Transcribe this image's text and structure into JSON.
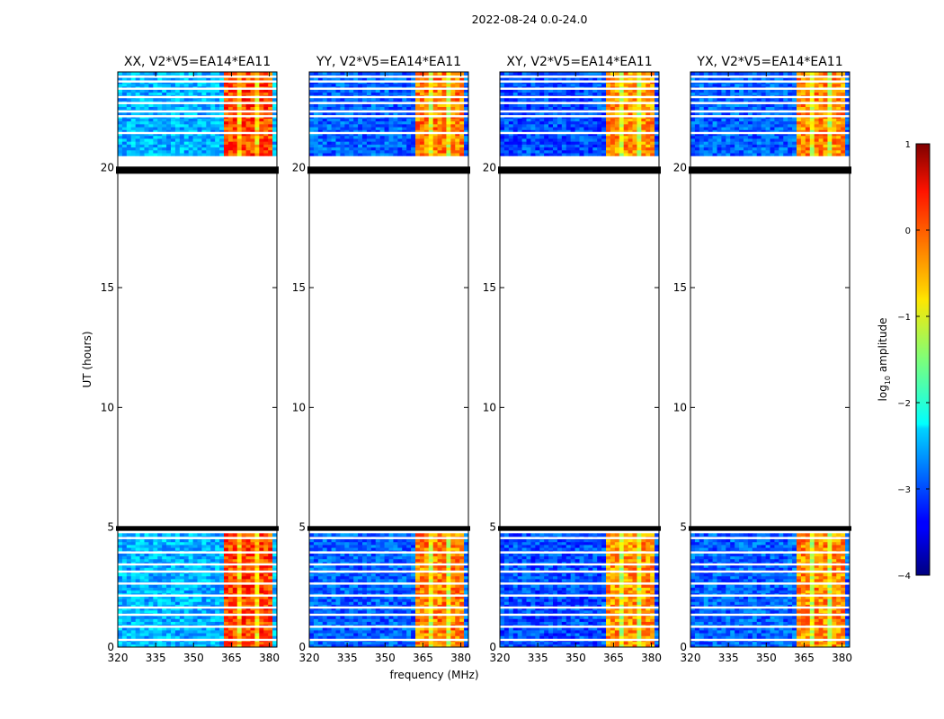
{
  "figure": {
    "suptitle": "2022-08-24 0.0-24.0",
    "ylabel": "UT (hours)",
    "xlabel": "frequency (MHz)",
    "colorbar_label": "log",
    "colorbar_label_sub": "10",
    "colorbar_label_suffix": " amplitude"
  },
  "chart_data": {
    "type": "heatmap",
    "title": "2022-08-24 0.0-24.0",
    "xlabel": "frequency (MHz)",
    "ylabel": "UT (hours)",
    "xlim": [
      320,
      383
    ],
    "ylim": [
      0,
      24
    ],
    "x_ticks": [
      320,
      335,
      350,
      365,
      380
    ],
    "y_ticks": [
      0,
      5,
      10,
      15,
      20
    ],
    "colorbar": {
      "label": "log10 amplitude",
      "range": [
        -4,
        1
      ],
      "ticks": [
        1,
        0,
        -1,
        -2,
        -3,
        -4
      ],
      "colormap": "jet"
    },
    "data_blocks_hours": [
      [
        0.0,
        4.75
      ],
      [
        20.5,
        24.0
      ]
    ],
    "marker_bands_hours": [
      [
        4.85,
        5.05
      ],
      [
        19.75,
        20.05
      ]
    ],
    "white_gap_lines_hours": [
      0.3,
      0.85,
      1.35,
      1.65,
      2.15,
      2.65,
      3.15,
      3.45,
      3.95,
      4.55,
      21.45,
      22.15,
      22.35,
      22.7,
      22.95,
      23.3,
      23.6,
      23.8
    ],
    "high_band_mhz": [
      361,
      380
    ],
    "panels": [
      {
        "title": "XX, V2*V5=EA14*EA11",
        "peak_log_amp": 0.5,
        "background_log_amp": -2.7
      },
      {
        "title": "YY, V2*V5=EA14*EA11",
        "peak_log_amp": 0.2,
        "background_log_amp": -3.1
      },
      {
        "title": "XY, V2*V5=EA14*EA11",
        "peak_log_amp": 0.1,
        "background_log_amp": -3.2
      },
      {
        "title": "YX, V2*V5=EA14*EA11",
        "peak_log_amp": 0.15,
        "background_log_amp": -3.1
      }
    ]
  }
}
